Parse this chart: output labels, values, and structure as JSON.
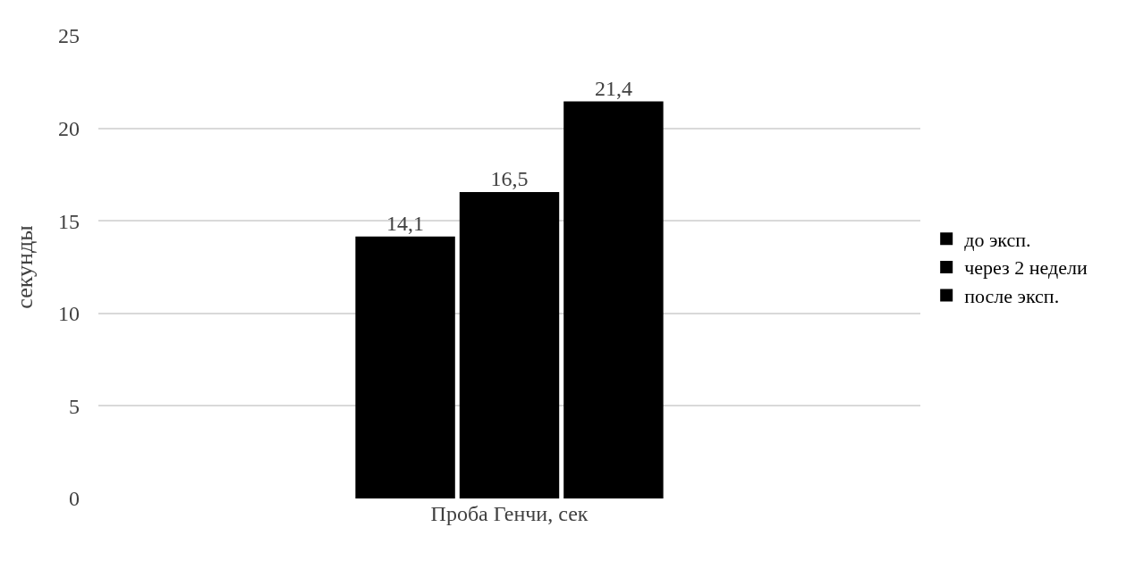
{
  "chart_data": {
    "type": "bar",
    "ylabel": "секунды",
    "categories": [
      "Проба Генчи, сек"
    ],
    "series": [
      {
        "name": "до эксп.",
        "color": "#000000",
        "values": [
          14.1
        ],
        "value_labels": [
          "14,1"
        ]
      },
      {
        "name": "через 2 недели",
        "color": "#000000",
        "values": [
          16.5
        ],
        "value_labels": [
          "16,5"
        ]
      },
      {
        "name": "после эксп.",
        "color": "#000000",
        "values": [
          21.4
        ],
        "value_labels": [
          "21,4"
        ]
      }
    ],
    "ylim": [
      0,
      25
    ],
    "yticks": [
      0,
      5,
      10,
      15,
      20,
      25
    ],
    "grid": "y",
    "legend": "right"
  }
}
